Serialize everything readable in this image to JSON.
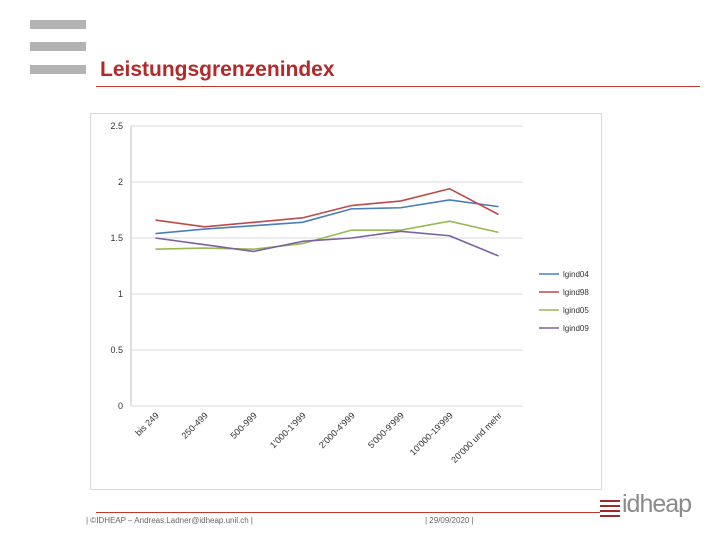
{
  "page": {
    "title": "Leistungsgrenzenindex"
  },
  "footer": {
    "left": "| ©IDHEAP – Andreas.Ladner@idheap.unil.ch |",
    "date": "| 29/09/2020 |"
  },
  "logo": {
    "text": "idheap"
  },
  "colors": {
    "accent": "#b22a2a",
    "bar": "#b3b3b3"
  },
  "chart_data": {
    "type": "line",
    "title": "",
    "xlabel": "",
    "ylabel": "",
    "ylim": [
      0,
      2.5
    ],
    "yticks": [
      "0",
      "0.5",
      "1",
      "1.5",
      "2",
      "2.5"
    ],
    "ytick_values": [
      0,
      0.5,
      1,
      1.5,
      2,
      2.5
    ],
    "categories": [
      "bis 249",
      "250-499",
      "500-999",
      "1'000-1'999",
      "2'000-4'999",
      "5'000-9'999",
      "10'000-19'999",
      "20'000 und mehr"
    ],
    "legend_position": "right",
    "series": [
      {
        "name": "lgind04",
        "color": "#4a7ebb",
        "values": [
          1.54,
          1.58,
          1.61,
          1.64,
          1.76,
          1.77,
          1.84,
          1.78
        ]
      },
      {
        "name": "lgind98",
        "color": "#be4b48",
        "values": [
          1.66,
          1.6,
          1.64,
          1.68,
          1.79,
          1.83,
          1.94,
          1.71
        ]
      },
      {
        "name": "lgind05",
        "color": "#98b954",
        "values": [
          1.4,
          1.41,
          1.4,
          1.45,
          1.57,
          1.57,
          1.65,
          1.55
        ]
      },
      {
        "name": "lgind09",
        "color": "#7d60a0",
        "values": [
          1.5,
          1.44,
          1.38,
          1.47,
          1.5,
          1.56,
          1.52,
          1.34
        ]
      }
    ]
  }
}
